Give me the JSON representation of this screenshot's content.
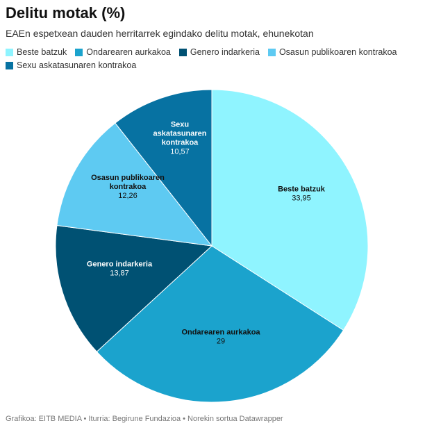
{
  "title": "Delitu motak (%)",
  "subtitle": "EAEn espetxean dauden herritarrek egindako delitu motak, ehunekotan",
  "footer": "Grafikoa: EITB MEDIA • Iturria: Begirune Fundazioa • Norekin sortua Datawrapper",
  "chart_data": {
    "type": "pie",
    "slices": [
      {
        "label": "Beste batzuk",
        "lines": [
          "Beste batzuk"
        ],
        "value": 33.95,
        "display": "33,95",
        "color": "#8ff4ff",
        "text_color": "#111111"
      },
      {
        "label": "Ondarearen aurkakoa",
        "lines": [
          "Ondarearen aurkakoa"
        ],
        "value": 29,
        "display": "29",
        "color": "#1ba3cd",
        "text_color": "#111111"
      },
      {
        "label": "Genero indarkeria",
        "lines": [
          "Genero indarkeria"
        ],
        "value": 13.87,
        "display": "13,87",
        "color": "#005173",
        "text_color": "#ffffff"
      },
      {
        "label": "Osasun publikoaren kontrakoa",
        "lines": [
          "Osasun publikoaren",
          "kontrakoa"
        ],
        "value": 12.26,
        "display": "12,26",
        "color": "#5ecaf2",
        "text_color": "#111111"
      },
      {
        "label": "Sexu askatasunaren kontrakoa",
        "lines": [
          "Sexu",
          "askatasunaren",
          "kontrakoa"
        ],
        "value": 10.57,
        "display": "10,57",
        "color": "#0772a2",
        "text_color": "#ffffff"
      }
    ],
    "start": "12 o'clock",
    "direction": "clockwise",
    "legend_position": "top"
  }
}
